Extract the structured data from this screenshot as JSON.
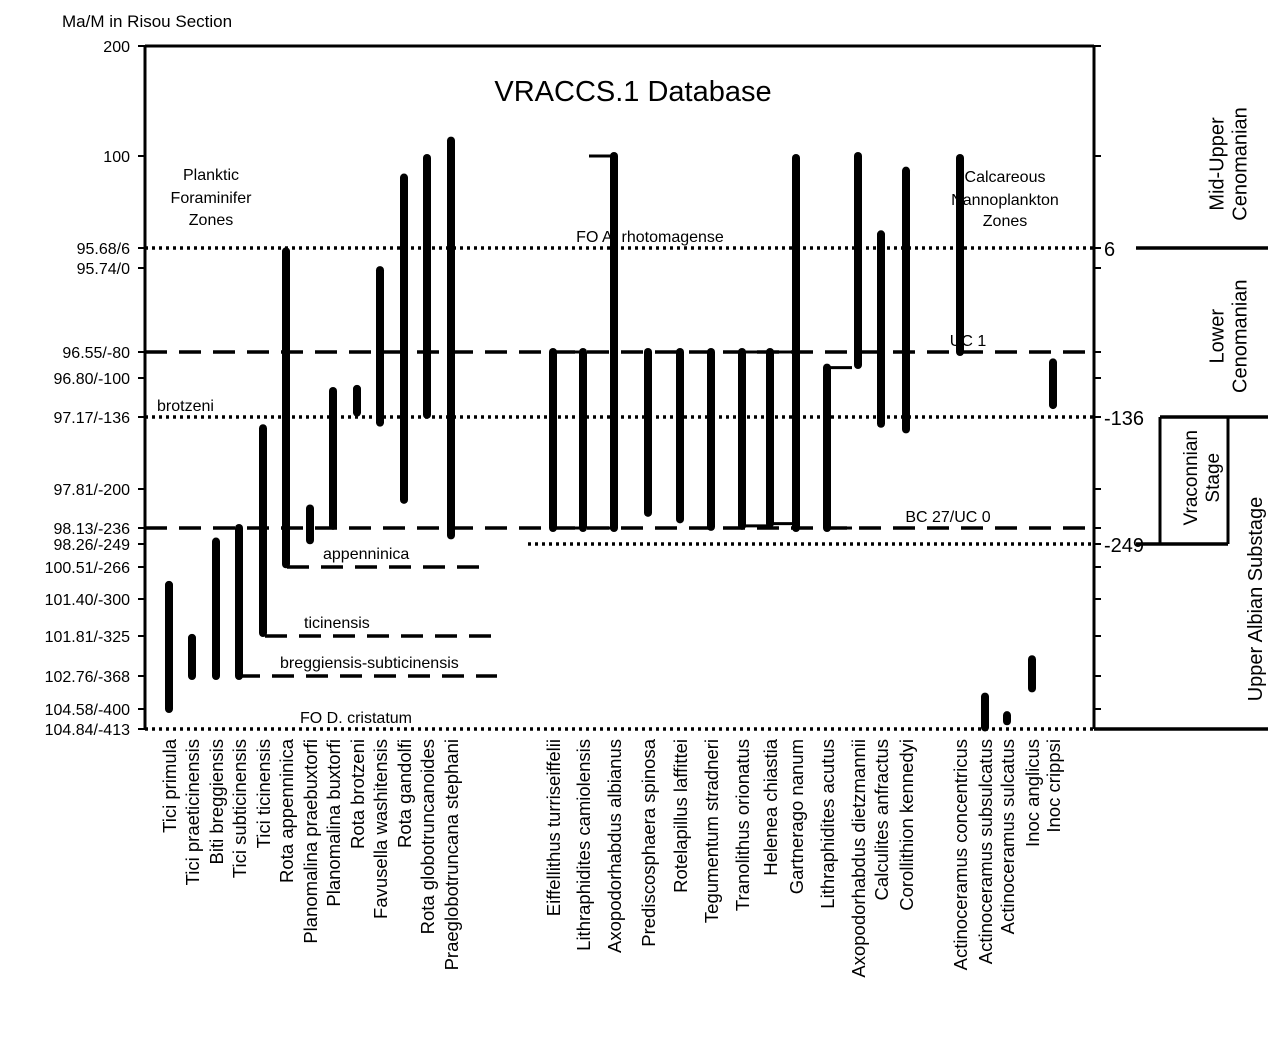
{
  "chart_data": {
    "type": "range",
    "title": "VRACCS.1 Database",
    "axis_title": "Ma/M in Risou Section",
    "y_scale": "M (meters, piecewise; tick labels show Ma/M)",
    "y_range_M": [
      -413,
      200
    ],
    "y_ticks": [
      {
        "label": "200",
        "m": 200
      },
      {
        "label": "100",
        "m": 100
      },
      {
        "label": "95.68/6",
        "m": 6
      },
      {
        "label": "95.74/0",
        "m": 0
      },
      {
        "label": "96.55/-80",
        "m": -80
      },
      {
        "label": "96.80/-100",
        "m": -100
      },
      {
        "label": "97.17/-136",
        "m": -136
      },
      {
        "label": "97.81/-200",
        "m": -200
      },
      {
        "label": "98.13/-236",
        "m": -236
      },
      {
        "label": "98.26/-249",
        "m": -249
      },
      {
        "label": "100.51/-266",
        "m": -266
      },
      {
        "label": "101.40/-300",
        "m": -300
      },
      {
        "label": "101.81/-325",
        "m": -325
      },
      {
        "label": "102.76/-368",
        "m": -368
      },
      {
        "label": "104.58/-400",
        "m": -400
      },
      {
        "label": "104.84/-413",
        "m": -413
      }
    ],
    "group_labels": {
      "planktic": [
        "Planktic",
        "Foraminifer",
        "Zones"
      ],
      "nanno": [
        "Calcareous",
        "Nannoplankton",
        "Zones"
      ]
    },
    "horizons": [
      {
        "label": "FO A. rhotomagense",
        "m": 6,
        "style": "dotted"
      },
      {
        "label": "UC 1",
        "m": -80,
        "style": "dashed"
      },
      {
        "label": "brotzeni",
        "m": -136,
        "style": "dotted"
      },
      {
        "label": "BC 27/UC 0",
        "m": -236,
        "style": "dashed"
      },
      {
        "label": "",
        "m": -249,
        "style": "dotted"
      },
      {
        "label": "FO D. cristatum",
        "m": -413,
        "style": "dotted"
      }
    ],
    "zone_lines": [
      {
        "label": "appenninica",
        "m": -266
      },
      {
        "label": "ticinensis",
        "m": -325
      },
      {
        "label": "breggiensis-subticinensis",
        "m": -368
      }
    ],
    "stages": [
      {
        "label": [
          "Mid-Upper",
          "Cenomanian"
        ],
        "top_m": 200,
        "base_m": 6
      },
      {
        "label": [
          "Lower",
          "Cenomanian"
        ],
        "top_m": 6,
        "base_m": -136
      },
      {
        "label": [
          "Vraconnian",
          "Stage"
        ],
        "top_m": -136,
        "base_m": -249
      },
      {
        "label": [
          "Upper Albian Substage"
        ],
        "top_m": -136,
        "base_m": -413
      }
    ],
    "stage_boundary_labels": [
      {
        "label": "6",
        "m": 6
      },
      {
        "label": "-136",
        "m": -136
      },
      {
        "label": "-249",
        "m": -249
      }
    ],
    "series": [
      {
        "name": "Tici primula",
        "top": -285,
        "base": -400
      },
      {
        "name": "Tici praeticinensis",
        "top": -327,
        "base": -368
      },
      {
        "name": "Biti breggiensis",
        "top": -247,
        "base": -368
      },
      {
        "name": "Tici subticinensis",
        "top": -236,
        "base": -368
      },
      {
        "name": "Tici ticinensis",
        "top": -146,
        "base": -323
      },
      {
        "name": "Rota appenninica",
        "top": 5,
        "base": -264
      },
      {
        "name": "Planomalina praebuxtorfi",
        "top": -218,
        "base": -246
      },
      {
        "name": "Planomalina buxtorfi",
        "top": -112,
        "base": -234
      },
      {
        "name": "Rota brotzeni",
        "top": -110,
        "base": -132
      },
      {
        "name": "Favusella washitensis",
        "top": -2,
        "base": -141
      },
      {
        "name": "Rota gandolfi",
        "top": 78,
        "base": -210
      },
      {
        "name": "Rota globotruncanoides",
        "top": 98,
        "base": -134
      },
      {
        "name": "Praeglobotruncana stephani",
        "top": 114,
        "base": -242
      },
      {
        "name": "Eiffellithus turriseiffelii",
        "top": -80,
        "base": -236,
        "bracket": "right"
      },
      {
        "name": "Lithraphidites camiolensis",
        "top": -80,
        "base": -236,
        "bracket": "left"
      },
      {
        "name": "Axopodorhabdus albianus",
        "top": 100,
        "base": -236,
        "bracket": "left"
      },
      {
        "name": "Prediscosphaera spinosa",
        "top": -80,
        "base": -222
      },
      {
        "name": "Rotelapillus laffittei",
        "top": -80,
        "base": -228
      },
      {
        "name": "Tegumentum stradneri",
        "top": -80,
        "base": -235
      },
      {
        "name": "Tranolithus orionatus",
        "top": -80,
        "base": -234,
        "bracket": "right"
      },
      {
        "name": "Helenea chiastia",
        "top": -80,
        "base": -232,
        "bracket": "right"
      },
      {
        "name": "Gartnerago nanum",
        "top": 98,
        "base": -236
      },
      {
        "name": "Lithraphidites acutus",
        "top": -92,
        "base": -236,
        "bracket": "right"
      },
      {
        "name": "Axopodorhabdus dietzmannii",
        "top": 100,
        "base": -90
      },
      {
        "name": "Calculites anfractus",
        "top": 20,
        "base": -142
      },
      {
        "name": "Corollithion kennedyi",
        "top": 85,
        "base": -147
      },
      {
        "name": "Actinoceramus concentricus",
        "top": 98,
        "base": -80
      },
      {
        "name": "Actinoceramus subsulcatus",
        "top": -388,
        "base": -412
      },
      {
        "name": "Actinoceramus sulcatus",
        "top": -404,
        "base": -408
      },
      {
        "name": "Inoc anglicus",
        "top": -350,
        "base": -380
      },
      {
        "name": "Inoc crippsi",
        "top": -88,
        "base": -125
      }
    ]
  }
}
